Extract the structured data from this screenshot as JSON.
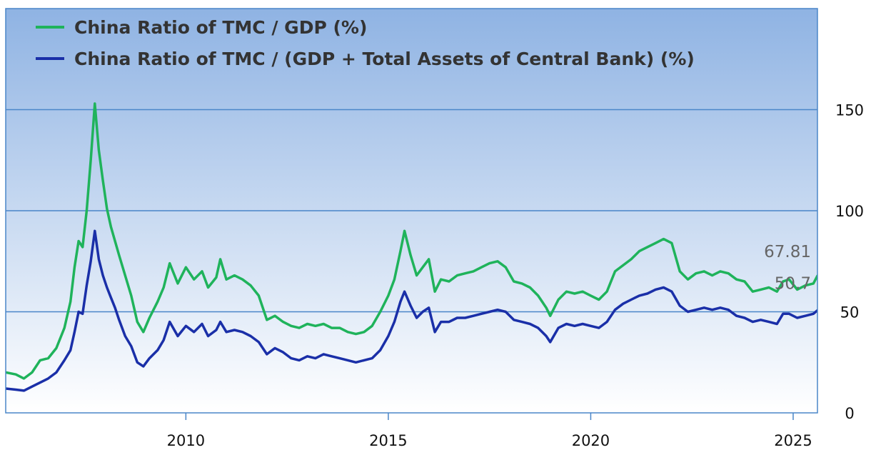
{
  "chart_data": {
    "type": "line",
    "title": "",
    "xlabel": "",
    "ylabel": "",
    "x_ticks": [
      "2010",
      "2015",
      "2020",
      "2025"
    ],
    "y_ticks": [
      "0",
      "50",
      "100",
      "150"
    ],
    "xlim": [
      2005.55,
      2025.6
    ],
    "ylim": [
      0,
      200
    ],
    "grid": true,
    "legend_position": "top-left",
    "background": {
      "top": "#8fb3e3",
      "bottom": "#ffffff"
    },
    "series": [
      {
        "name": "China Ratio of TMC / GDP (%)",
        "color": "#1fb35b",
        "end_label": "67.81",
        "x": [
          2005.55,
          2005.8,
          2006.0,
          2006.2,
          2006.4,
          2006.6,
          2006.8,
          2007.0,
          2007.15,
          2007.25,
          2007.35,
          2007.45,
          2007.55,
          2007.65,
          2007.75,
          2007.85,
          2007.95,
          2008.05,
          2008.15,
          2008.25,
          2008.35,
          2008.5,
          2008.65,
          2008.8,
          2008.95,
          2009.1,
          2009.3,
          2009.45,
          2009.6,
          2009.8,
          2010.0,
          2010.2,
          2010.4,
          2010.55,
          2010.75,
          2010.85,
          2011.0,
          2011.2,
          2011.4,
          2011.6,
          2011.8,
          2012.0,
          2012.2,
          2012.4,
          2012.6,
          2012.8,
          2013.0,
          2013.2,
          2013.4,
          2013.6,
          2013.8,
          2014.0,
          2014.2,
          2014.4,
          2014.6,
          2014.8,
          2015.0,
          2015.15,
          2015.3,
          2015.4,
          2015.55,
          2015.7,
          2015.85,
          2016.0,
          2016.15,
          2016.3,
          2016.5,
          2016.7,
          2016.9,
          2017.1,
          2017.3,
          2017.5,
          2017.7,
          2017.9,
          2018.1,
          2018.3,
          2018.5,
          2018.7,
          2018.9,
          2019.0,
          2019.2,
          2019.4,
          2019.6,
          2019.8,
          2020.0,
          2020.2,
          2020.4,
          2020.6,
          2020.8,
          2021.0,
          2021.2,
          2021.4,
          2021.6,
          2021.8,
          2022.0,
          2022.2,
          2022.4,
          2022.6,
          2022.8,
          2023.0,
          2023.2,
          2023.4,
          2023.6,
          2023.8,
          2024.0,
          2024.2,
          2024.4,
          2024.6,
          2024.75,
          2024.9,
          2025.1,
          2025.3,
          2025.5,
          2025.6
        ],
        "y": [
          20,
          19,
          17,
          20,
          26,
          27,
          32,
          42,
          55,
          72,
          85,
          82,
          100,
          125,
          153,
          130,
          115,
          101,
          92,
          85,
          78,
          68,
          58,
          45,
          40,
          47,
          55,
          62,
          74,
          64,
          72,
          66,
          70,
          62,
          67,
          76,
          66,
          68,
          66,
          63,
          58,
          46,
          48,
          45,
          43,
          42,
          44,
          43,
          44,
          42,
          42,
          40,
          39,
          40,
          43,
          50,
          58,
          66,
          80,
          90,
          78,
          68,
          72,
          76,
          60,
          66,
          65,
          68,
          69,
          70,
          72,
          74,
          75,
          72,
          65,
          64,
          62,
          58,
          52,
          48,
          56,
          60,
          59,
          60,
          58,
          56,
          60,
          70,
          73,
          76,
          80,
          82,
          84,
          86,
          84,
          70,
          66,
          69,
          70,
          68,
          70,
          69,
          66,
          65,
          60,
          61,
          62,
          60,
          65,
          66,
          61,
          63,
          64,
          67.81
        ]
      },
      {
        "name": "China Ratio of TMC / (GDP + Total Assets of Central Bank) (%)",
        "color": "#1a2fa8",
        "end_label": "50.7",
        "x": [
          2005.55,
          2005.8,
          2006.0,
          2006.2,
          2006.4,
          2006.6,
          2006.8,
          2007.0,
          2007.15,
          2007.25,
          2007.35,
          2007.45,
          2007.55,
          2007.65,
          2007.75,
          2007.85,
          2007.95,
          2008.05,
          2008.15,
          2008.25,
          2008.35,
          2008.5,
          2008.65,
          2008.8,
          2008.95,
          2009.1,
          2009.3,
          2009.45,
          2009.6,
          2009.8,
          2010.0,
          2010.2,
          2010.4,
          2010.55,
          2010.75,
          2010.85,
          2011.0,
          2011.2,
          2011.4,
          2011.6,
          2011.8,
          2012.0,
          2012.2,
          2012.4,
          2012.6,
          2012.8,
          2013.0,
          2013.2,
          2013.4,
          2013.6,
          2013.8,
          2014.0,
          2014.2,
          2014.4,
          2014.6,
          2014.8,
          2015.0,
          2015.15,
          2015.3,
          2015.4,
          2015.55,
          2015.7,
          2015.85,
          2016.0,
          2016.15,
          2016.3,
          2016.5,
          2016.7,
          2016.9,
          2017.1,
          2017.3,
          2017.5,
          2017.7,
          2017.9,
          2018.1,
          2018.3,
          2018.5,
          2018.7,
          2018.9,
          2019.0,
          2019.2,
          2019.4,
          2019.6,
          2019.8,
          2020.0,
          2020.2,
          2020.4,
          2020.6,
          2020.8,
          2021.0,
          2021.2,
          2021.4,
          2021.6,
          2021.8,
          2022.0,
          2022.2,
          2022.4,
          2022.6,
          2022.8,
          2023.0,
          2023.2,
          2023.4,
          2023.6,
          2023.8,
          2024.0,
          2024.2,
          2024.4,
          2024.6,
          2024.75,
          2024.9,
          2025.1,
          2025.3,
          2025.5,
          2025.6
        ],
        "y": [
          12,
          11.5,
          11,
          13,
          15,
          17,
          20,
          26,
          31,
          40,
          50,
          49,
          63,
          75,
          90,
          76,
          68,
          62,
          57,
          52,
          46,
          38,
          33,
          25,
          23,
          27,
          31,
          36,
          45,
          38,
          43,
          40,
          44,
          38,
          41,
          45,
          40,
          41,
          40,
          38,
          35,
          29,
          32,
          30,
          27,
          26,
          28,
          27,
          29,
          28,
          27,
          26,
          25,
          26,
          27,
          31,
          38,
          45,
          55,
          60,
          53,
          47,
          50,
          52,
          40,
          45,
          45,
          47,
          47,
          48,
          49,
          50,
          51,
          50,
          46,
          45,
          44,
          42,
          38,
          35,
          42,
          44,
          43,
          44,
          43,
          42,
          45,
          51,
          54,
          56,
          58,
          59,
          61,
          62,
          60,
          53,
          50,
          51,
          52,
          51,
          52,
          51,
          48,
          47,
          45,
          46,
          45,
          44,
          49,
          49,
          47,
          48,
          49,
          50.7
        ]
      }
    ]
  }
}
